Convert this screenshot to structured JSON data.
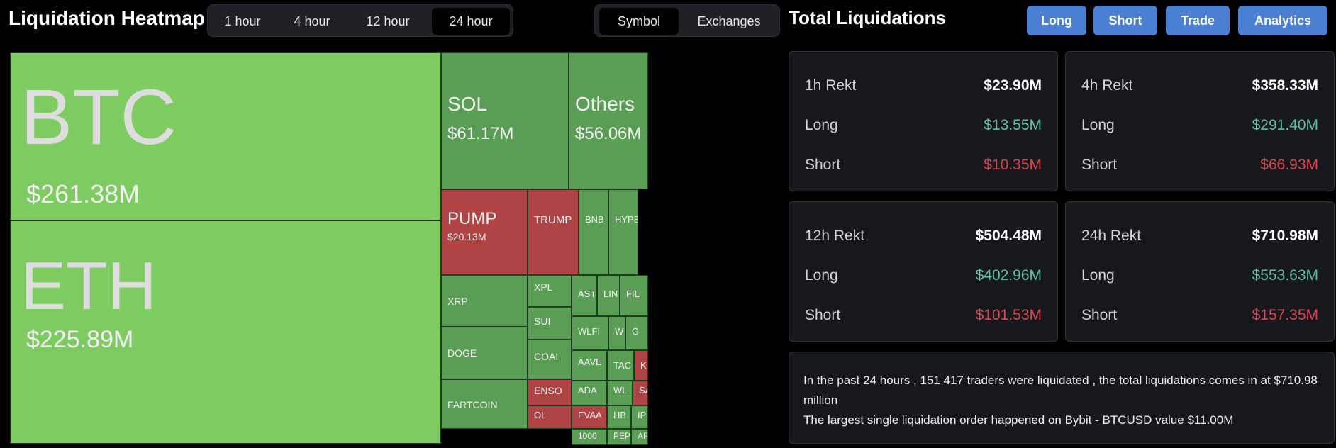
{
  "heatmap": {
    "title": "Liquidation Heatmap",
    "time_tabs": [
      "1 hour",
      "4 hour",
      "12 hour",
      "24 hour"
    ],
    "active_time_tab": "24 hour",
    "view_tabs": [
      "Symbol",
      "Exchanges"
    ],
    "active_view_tab": "Symbol",
    "cells": [
      {
        "sym": "BTC",
        "val": "$261.38M",
        "color": "lime"
      },
      {
        "sym": "ETH",
        "val": "$225.89M",
        "color": "lime"
      },
      {
        "sym": "SOL",
        "val": "$61.17M",
        "color": "green"
      },
      {
        "sym": "Others",
        "val": "$56.06M",
        "color": "green"
      },
      {
        "sym": "PUMP",
        "val": "$20.13M",
        "color": "red"
      },
      {
        "sym": "TRUMP",
        "val": "",
        "color": "red"
      },
      {
        "sym": "BNB",
        "val": "",
        "color": "green"
      },
      {
        "sym": "HYPE",
        "val": "",
        "color": "green"
      },
      {
        "sym": "XRP",
        "val": "",
        "color": "green"
      },
      {
        "sym": "DOGE",
        "val": "",
        "color": "green"
      },
      {
        "sym": "FARTCOIN",
        "val": "",
        "color": "green"
      },
      {
        "sym": "XPL",
        "val": "",
        "color": "green"
      },
      {
        "sym": "SUI",
        "val": "",
        "color": "green"
      },
      {
        "sym": "COAI",
        "val": "",
        "color": "green"
      },
      {
        "sym": "ENSO",
        "val": "",
        "color": "red"
      },
      {
        "sym": "OL",
        "val": "",
        "color": "red"
      },
      {
        "sym": "AST",
        "val": "",
        "color": "green"
      },
      {
        "sym": "LIN",
        "val": "",
        "color": "green"
      },
      {
        "sym": "FIL",
        "val": "",
        "color": "green"
      },
      {
        "sym": "WLFI",
        "val": "",
        "color": "green"
      },
      {
        "sym": "W",
        "val": "",
        "color": "green"
      },
      {
        "sym": "G",
        "val": "",
        "color": "green"
      },
      {
        "sym": "AAVE",
        "val": "",
        "color": "green"
      },
      {
        "sym": "TAC",
        "val": "",
        "color": "green"
      },
      {
        "sym": "K",
        "val": "",
        "color": "red"
      },
      {
        "sym": "ADA",
        "val": "",
        "color": "green"
      },
      {
        "sym": "WL",
        "val": "",
        "color": "green"
      },
      {
        "sym": "SA",
        "val": "",
        "color": "red"
      },
      {
        "sym": "EVAA",
        "val": "",
        "color": "red"
      },
      {
        "sym": "HB",
        "val": "",
        "color": "green"
      },
      {
        "sym": "IP",
        "val": "",
        "color": "green"
      },
      {
        "sym": "1000",
        "val": "",
        "color": "green"
      },
      {
        "sym": "PEP",
        "val": "",
        "color": "green"
      },
      {
        "sym": "AF",
        "val": "",
        "color": "green"
      }
    ]
  },
  "totals": {
    "title": "Total Liquidations",
    "buttons": [
      "Long",
      "Short",
      "Trade",
      "Analytics"
    ],
    "cards": [
      {
        "label": "1h Rekt",
        "total": "$23.90M",
        "long_label": "Long",
        "long": "$13.55M",
        "short_label": "Short",
        "short": "$10.35M"
      },
      {
        "label": "4h Rekt",
        "total": "$358.33M",
        "long_label": "Long",
        "long": "$291.40M",
        "short_label": "Short",
        "short": "$66.93M"
      },
      {
        "label": "12h Rekt",
        "total": "$504.48M",
        "long_label": "Long",
        "long": "$402.96M",
        "short_label": "Short",
        "short": "$101.53M"
      },
      {
        "label": "24h Rekt",
        "total": "$710.98M",
        "long_label": "Long",
        "long": "$553.63M",
        "short_label": "Short",
        "short": "$157.35M"
      }
    ],
    "summary_line1": "In the past 24 hours , 151 417 traders were liquidated , the total liquidations comes in at $710.98 million",
    "summary_line2": "The largest single liquidation order happened on Bybit - BTCUSD value $11.00M"
  },
  "colors": {
    "accent_blue": "#4a7fd4",
    "long_green": "#5fc3a2",
    "short_red": "#e04352",
    "heat_lime": "#7ecb62",
    "heat_green": "#5a9e55",
    "heat_red": "#b04444"
  }
}
